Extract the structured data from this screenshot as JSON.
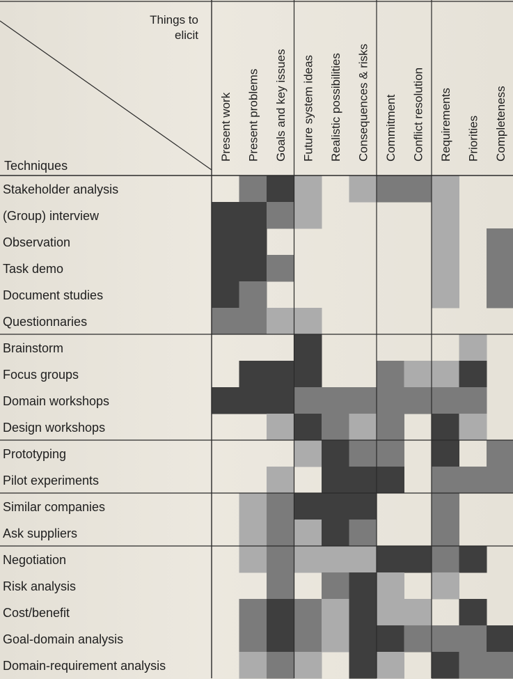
{
  "corner": {
    "things_line1": "Things to",
    "things_line2": "elicit",
    "techniques": "Techniques"
  },
  "columns": [
    "Present work",
    "Present problems",
    "Goals and key issues",
    "Future system ideas",
    "Realistic possibilities",
    "Consequences & risks",
    "Commitment",
    "Conflict resolution",
    "Requirements",
    "Priorities",
    "Completeness"
  ],
  "rows": [
    "Stakeholder analysis",
    "(Group) interview",
    "Observation",
    "Task demo",
    "Document studies",
    "Questionnaries",
    "Brainstorm",
    "Focus groups",
    "Domain workshops",
    "Design workshops",
    "Prototyping",
    "Pilot experiments",
    "Similar companies",
    "Ask suppliers",
    "Negotiation",
    "Risk analysis",
    "Cost/benefit",
    "Goal-domain analysis",
    "Domain-requirement analysis"
  ],
  "colors": {
    "dark": "#3e3e3e",
    "medium": "#7b7b7b",
    "light": "#acacac",
    "line": "#2a2a2a"
  },
  "shading_levels": [
    [
      0,
      2,
      3,
      1,
      0,
      1,
      2,
      2,
      1,
      0,
      0
    ],
    [
      3,
      3,
      2,
      1,
      0,
      0,
      0,
      0,
      1,
      0,
      0
    ],
    [
      3,
      3,
      0,
      0,
      0,
      0,
      0,
      0,
      1,
      0,
      2
    ],
    [
      3,
      3,
      2,
      0,
      0,
      0,
      0,
      0,
      1,
      0,
      2
    ],
    [
      3,
      2,
      0,
      0,
      0,
      0,
      0,
      0,
      1,
      0,
      2
    ],
    [
      2,
      2,
      1,
      1,
      0,
      0,
      0,
      0,
      0,
      0,
      0
    ],
    [
      0,
      0,
      0,
      3,
      0,
      0,
      0,
      0,
      0,
      1,
      0
    ],
    [
      0,
      3,
      3,
      3,
      0,
      0,
      2,
      1,
      1,
      3,
      0
    ],
    [
      3,
      3,
      3,
      2,
      2,
      2,
      2,
      2,
      2,
      2,
      0
    ],
    [
      0,
      0,
      1,
      3,
      2,
      1,
      2,
      0,
      3,
      1,
      0
    ],
    [
      0,
      0,
      0,
      1,
      3,
      2,
      2,
      0,
      3,
      0,
      2
    ],
    [
      0,
      0,
      1,
      0,
      3,
      3,
      3,
      0,
      2,
      2,
      2
    ],
    [
      0,
      1,
      2,
      3,
      3,
      3,
      0,
      0,
      2,
      0,
      0
    ],
    [
      0,
      1,
      2,
      1,
      3,
      2,
      0,
      0,
      2,
      0,
      0
    ],
    [
      0,
      1,
      2,
      1,
      1,
      1,
      3,
      3,
      2,
      3,
      0
    ],
    [
      0,
      0,
      2,
      0,
      2,
      3,
      1,
      0,
      1,
      0,
      0
    ],
    [
      0,
      2,
      3,
      2,
      1,
      3,
      1,
      1,
      0,
      3,
      0
    ],
    [
      0,
      2,
      3,
      2,
      1,
      3,
      3,
      2,
      2,
      2,
      3
    ],
    [
      0,
      1,
      2,
      1,
      0,
      3,
      1,
      0,
      3,
      2,
      2
    ]
  ]
}
